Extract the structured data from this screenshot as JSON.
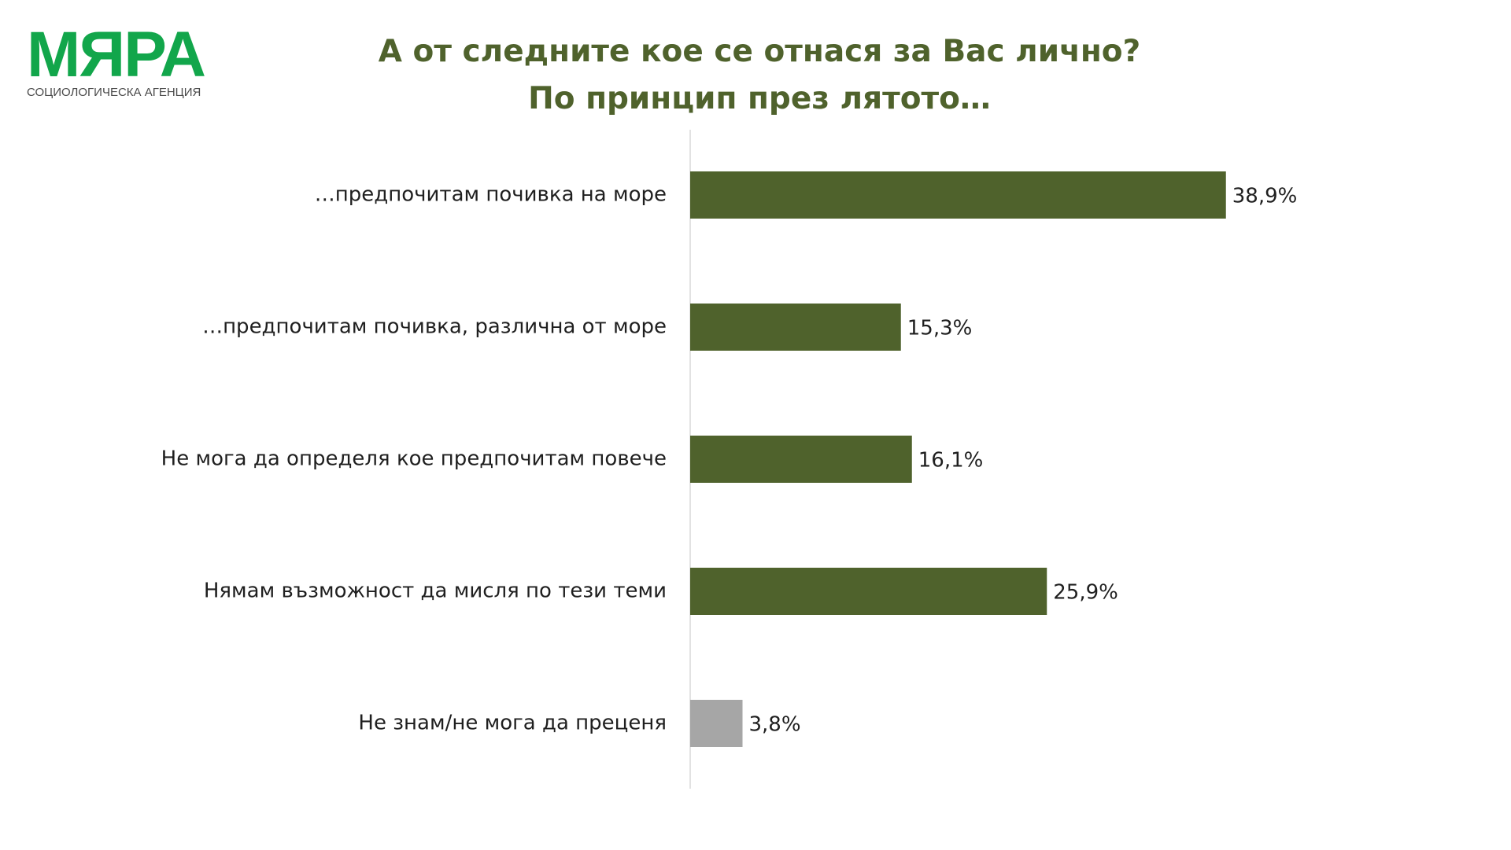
{
  "logo": {
    "name": "МЯРА",
    "tagline": "СОЦИОЛОГИЧЕСКА АГЕНЦИЯ",
    "color": "#12a64b"
  },
  "title": {
    "line1": "А от следните кое се отнася за Вас лично?",
    "line2": "По принцип през лятото…"
  },
  "chart_data": {
    "type": "bar",
    "orientation": "horizontal",
    "categories": [
      "…предпочитам почивка на море",
      "…предпочитам почивка, различна от море",
      "Не мога да определя кое предпочитам повече",
      "Нямам възможност да мисля по тези теми",
      "Не знам/не мога да преценя"
    ],
    "values": [
      38.9,
      15.3,
      16.1,
      25.9,
      3.8
    ],
    "value_labels": [
      "38,9%",
      "15,3%",
      "16,1%",
      "25,9%",
      "3,8%"
    ],
    "colors": [
      "#4f622c",
      "#4f622c",
      "#4f622c",
      "#4f622c",
      "#a6a6a6"
    ],
    "xlim": [
      0,
      50
    ],
    "grid": false,
    "legend": "none"
  }
}
